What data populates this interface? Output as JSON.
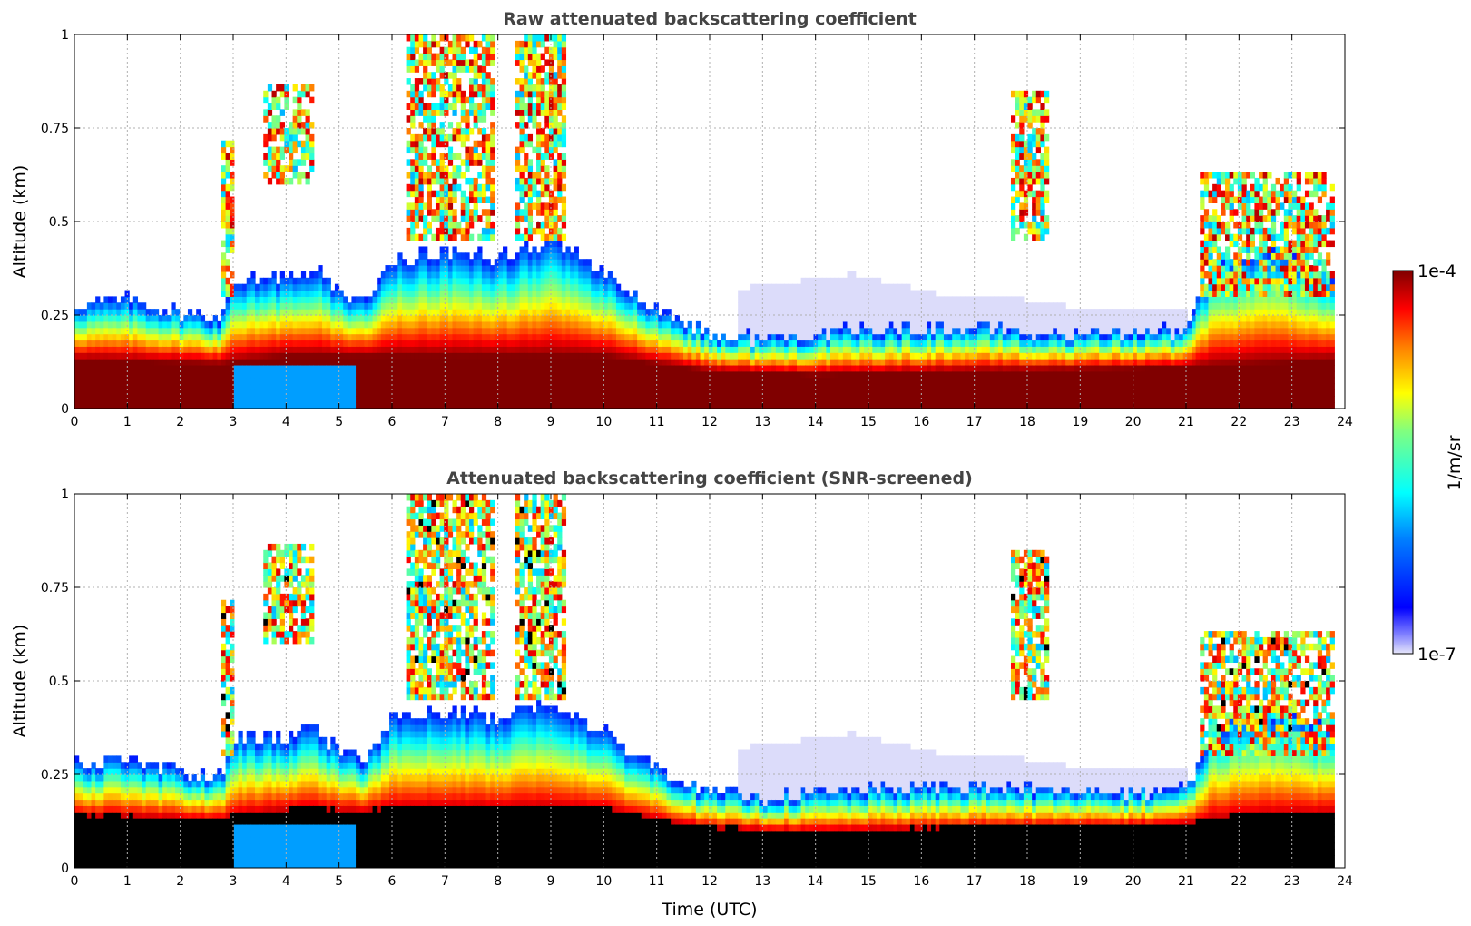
{
  "chart_data": [
    {
      "type": "heatmap",
      "title": "Raw attenuated backscattering coefficient",
      "xlabel": "",
      "ylabel": "Altitude (km)",
      "xlim": [
        0,
        24
      ],
      "ylim": [
        0,
        1
      ],
      "x_ticks": [
        "0",
        "1",
        "2",
        "3",
        "4",
        "5",
        "6",
        "7",
        "8",
        "9",
        "10",
        "11",
        "12",
        "13",
        "14",
        "15",
        "16",
        "17",
        "18",
        "19",
        "20",
        "21",
        "22",
        "23",
        "24"
      ],
      "y_ticks": [
        "0",
        "0.25",
        "0.5",
        "0.75",
        "1"
      ],
      "grid": true,
      "data_time_range": [
        0,
        23.8
      ],
      "boundary_layer_top_km": [
        {
          "t": 0,
          "z": 0.28
        },
        {
          "t": 1,
          "z": 0.29
        },
        {
          "t": 2,
          "z": 0.26
        },
        {
          "t": 2.8,
          "z": 0.24
        },
        {
          "t": 3.0,
          "z": 0.35
        },
        {
          "t": 4.0,
          "z": 0.35
        },
        {
          "t": 4.5,
          "z": 0.38
        },
        {
          "t": 5.0,
          "z": 0.31
        },
        {
          "t": 5.5,
          "z": 0.29
        },
        {
          "t": 6.0,
          "z": 0.4
        },
        {
          "t": 7.0,
          "z": 0.42
        },
        {
          "t": 8.0,
          "z": 0.4
        },
        {
          "t": 9.0,
          "z": 0.45
        },
        {
          "t": 10.0,
          "z": 0.36
        },
        {
          "t": 11.0,
          "z": 0.27
        },
        {
          "t": 12.0,
          "z": 0.2
        },
        {
          "t": 13.0,
          "z": 0.19
        },
        {
          "t": 15.0,
          "z": 0.21
        },
        {
          "t": 17.0,
          "z": 0.22
        },
        {
          "t": 19.0,
          "z": 0.2
        },
        {
          "t": 21.0,
          "z": 0.21
        },
        {
          "t": 21.5,
          "z": 0.38
        },
        {
          "t": 22.5,
          "z": 0.42
        },
        {
          "t": 23.8,
          "z": 0.36
        }
      ],
      "aerosol_layer_base_km": [
        {
          "t": 0,
          "z": 0.13
        },
        {
          "t": 2.8,
          "z": 0.12
        },
        {
          "t": 4.0,
          "z": 0.14
        },
        {
          "t": 6.0,
          "z": 0.14
        },
        {
          "t": 10.0,
          "z": 0.14
        },
        {
          "t": 12.0,
          "z": 0.1
        },
        {
          "t": 14.0,
          "z": 0.09
        },
        {
          "t": 17.0,
          "z": 0.1
        },
        {
          "t": 21.0,
          "z": 0.11
        },
        {
          "t": 23.8,
          "z": 0.13
        }
      ],
      "high_features": [
        {
          "t0": 2.8,
          "t1": 3.0,
          "z0": 0.3,
          "z1": 0.72
        },
        {
          "t0": 3.6,
          "t1": 4.5,
          "z0": 0.6,
          "z1": 0.86
        },
        {
          "t0": 6.3,
          "t1": 7.9,
          "z0": 0.45,
          "z1": 1.0
        },
        {
          "t0": 8.3,
          "t1": 9.3,
          "z0": 0.45,
          "z1": 1.0
        },
        {
          "t0": 17.7,
          "t1": 18.4,
          "z0": 0.45,
          "z1": 0.85
        },
        {
          "t0": 21.3,
          "t1": 23.8,
          "z0": 0.3,
          "z1": 0.64
        }
      ],
      "clear_air_band_km": [
        {
          "t": 12.5,
          "z": 0.32
        },
        {
          "t": 14.7,
          "z": 0.36
        },
        {
          "t": 16.5,
          "z": 0.3
        },
        {
          "t": 17.5,
          "z": 0.3
        },
        {
          "t": 19.0,
          "z": 0.27
        },
        {
          "t": 21.0,
          "z": 0.27
        }
      ],
      "low_blue_patches": [
        {
          "t0": 3.0,
          "t1": 5.3,
          "z0": 0.0,
          "z1": 0.12
        }
      ]
    },
    {
      "type": "heatmap",
      "title": "Attenuated backscattering coefficient (SNR-screened)",
      "xlabel": "Time (UTC)",
      "ylabel": "Altitude (km)",
      "xlim": [
        0,
        24
      ],
      "ylim": [
        0,
        1
      ],
      "x_ticks": [
        "0",
        "1",
        "2",
        "3",
        "4",
        "5",
        "6",
        "7",
        "8",
        "9",
        "10",
        "11",
        "12",
        "13",
        "14",
        "15",
        "16",
        "17",
        "18",
        "19",
        "20",
        "21",
        "22",
        "23",
        "24"
      ],
      "y_ticks": [
        "0",
        "0.25",
        "0.5",
        "0.75",
        "1"
      ],
      "grid": true,
      "data_time_range": [
        0,
        23.8
      ],
      "saturated_region_color": "#000000"
    }
  ],
  "colorbar": {
    "label": "1/m/sr",
    "max_label": "1e-4",
    "min_label": "1e-7",
    "scale": "log",
    "colormap": "jet",
    "min_color": "#e6e6fa",
    "max_color": "#7f0000"
  }
}
